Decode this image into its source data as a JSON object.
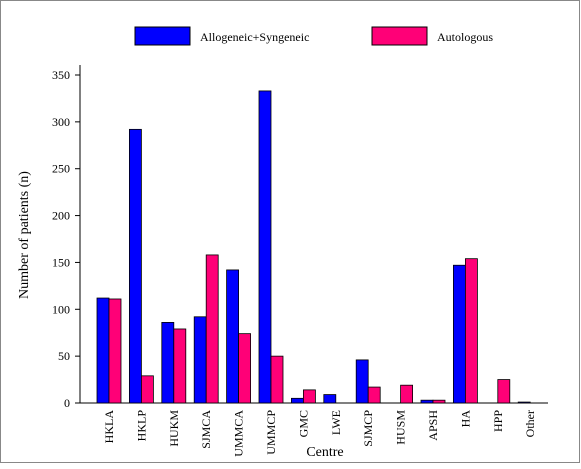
{
  "chart_data": {
    "type": "bar",
    "x_label": "Centre",
    "y_label": "Number of patients (n)",
    "categories": [
      "HKLA",
      "HKLP",
      "HUKM",
      "SJMCA",
      "UMMCA",
      "UMMCP",
      "GMC",
      "LWE",
      "SJMCP",
      "HUSM",
      "APSH",
      "HA",
      "HPP",
      "Other"
    ],
    "series": [
      {
        "name": "Allogeneic+Syngeneic",
        "color": "#0000ff",
        "values": [
          112,
          292,
          86,
          92,
          142,
          333,
          5,
          9,
          46,
          0,
          3,
          147,
          0,
          1
        ]
      },
      {
        "name": "Autologous",
        "color": "#ff0077",
        "values": [
          111,
          29,
          79,
          158,
          74,
          50,
          14,
          0,
          17,
          19,
          3,
          154,
          25,
          0
        ]
      }
    ],
    "ylim": [
      0,
      350
    ],
    "yticks": [
      0,
      50,
      100,
      150,
      200,
      250,
      300,
      350
    ],
    "legend": "top",
    "grid": false
  }
}
